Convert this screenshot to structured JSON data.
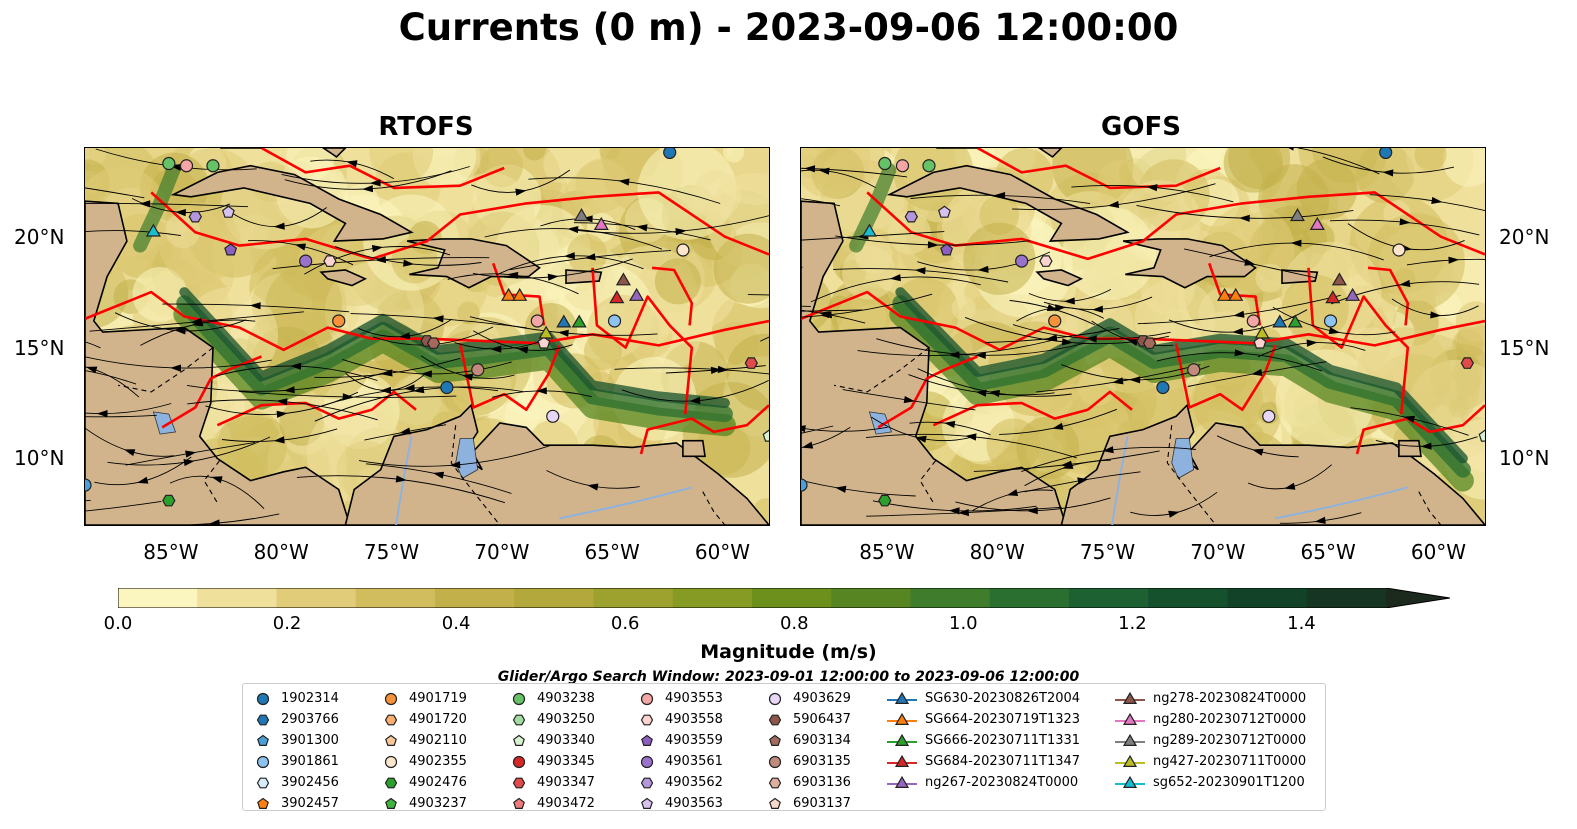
{
  "title": "Currents (0 m) - 2023-09-06 12:00:00",
  "panels": [
    {
      "title": "RTOFS"
    },
    {
      "title": "GOFS"
    }
  ],
  "axes": {
    "lon_ticks": [
      "85°W",
      "80°W",
      "75°W",
      "70°W",
      "65°W",
      "60°W"
    ],
    "lat_ticks": [
      "20°N",
      "15°N",
      "10°N"
    ]
  },
  "colorbar": {
    "label": "Magnitude (m/s)",
    "ticks": [
      "0.0",
      "0.2",
      "0.4",
      "0.6",
      "0.8",
      "1.0",
      "1.2",
      "1.4"
    ],
    "range": [
      0,
      1.5
    ],
    "colors": [
      "#fbf5bf",
      "#efe09c",
      "#e0cc79",
      "#d1bd5e",
      "#c2b14a",
      "#b2a83c",
      "#9da22f",
      "#869b23",
      "#6d8f1c",
      "#578522",
      "#3f7c2b",
      "#2b6f30",
      "#1d6132",
      "#16512d",
      "#124328",
      "#173523",
      "#1c2a1e"
    ]
  },
  "search_window": "Glider/Argo Search Window: 2023-09-01 12:00:00 to 2023-09-06 12:00:00",
  "legend": {
    "columns": [
      [
        {
          "label": "1902314",
          "marker": "circle",
          "color": "#1f77b4"
        },
        {
          "label": "2903766",
          "marker": "hexagon",
          "color": "#1f77b4"
        },
        {
          "label": "3901300",
          "marker": "pentagon",
          "color": "#4a9fd8"
        },
        {
          "label": "3901861",
          "marker": "circle",
          "color": "#8cc4ef"
        },
        {
          "label": "3902456",
          "marker": "hexagon",
          "color": "#d6ecf8"
        },
        {
          "label": "3902457",
          "marker": "pentagon",
          "color": "#ff7f0e"
        }
      ],
      [
        {
          "label": "4901719",
          "marker": "circle",
          "color": "#f7913a"
        },
        {
          "label": "4901720",
          "marker": "hexagon",
          "color": "#f9ad6f"
        },
        {
          "label": "4902110",
          "marker": "pentagon",
          "color": "#fbc79a"
        },
        {
          "label": "4902355",
          "marker": "circle",
          "color": "#fde6cc"
        },
        {
          "label": "4902476",
          "marker": "hexagon",
          "color": "#2ca02c"
        },
        {
          "label": "4903237",
          "marker": "pentagon",
          "color": "#3eb43e"
        }
      ],
      [
        {
          "label": "4903238",
          "marker": "circle",
          "color": "#66c266"
        },
        {
          "label": "4903250",
          "marker": "hexagon",
          "color": "#a3dba3"
        },
        {
          "label": "4903340",
          "marker": "pentagon",
          "color": "#d7f2d0"
        },
        {
          "label": "4903345",
          "marker": "circle",
          "color": "#d62728"
        },
        {
          "label": "4903347",
          "marker": "hexagon",
          "color": "#e04a4a"
        },
        {
          "label": "4903472",
          "marker": "pentagon",
          "color": "#ec7c7c"
        }
      ],
      [
        {
          "label": "4903553",
          "marker": "circle",
          "color": "#f4a5a5"
        },
        {
          "label": "4903558",
          "marker": "hexagon",
          "color": "#fbd3d0"
        },
        {
          "label": "4903559",
          "marker": "pentagon",
          "color": "#8c5fc1"
        },
        {
          "label": "4903561",
          "marker": "circle",
          "color": "#9a72cc"
        },
        {
          "label": "4903562",
          "marker": "hexagon",
          "color": "#b396dc"
        },
        {
          "label": "4903563",
          "marker": "pentagon",
          "color": "#d7c2ef"
        }
      ],
      [
        {
          "label": "4903629",
          "marker": "circle",
          "color": "#e8d6f7"
        },
        {
          "label": "5906437",
          "marker": "hexagon",
          "color": "#8c564b"
        },
        {
          "label": "6903134",
          "marker": "pentagon",
          "color": "#a46a5c"
        },
        {
          "label": "6903135",
          "marker": "circle",
          "color": "#c08a7c"
        },
        {
          "label": "6903136",
          "marker": "hexagon",
          "color": "#deae9e"
        },
        {
          "label": "6903137",
          "marker": "pentagon",
          "color": "#f7d8cc"
        }
      ],
      [
        {
          "label": "SG630-20230826T2004",
          "marker": "triangle",
          "color": "#1f77b4"
        },
        {
          "label": "SG664-20230719T1323",
          "marker": "triangle",
          "color": "#ff7f0e"
        },
        {
          "label": "SG666-20230711T1331",
          "marker": "triangle",
          "color": "#2ca02c"
        },
        {
          "label": "SG684-20230711T1347",
          "marker": "triangle",
          "color": "#d62728"
        },
        {
          "label": "ng267-20230824T0000",
          "marker": "triangle",
          "color": "#9467bd"
        }
      ],
      [
        {
          "label": "ng278-20230824T0000",
          "marker": "triangle",
          "color": "#8c564b"
        },
        {
          "label": "ng280-20230712T0000",
          "marker": "triangle",
          "color": "#e377c2"
        },
        {
          "label": "ng289-20230712T0000",
          "marker": "triangle",
          "color": "#7f7f7f"
        },
        {
          "label": "ng427-20230711T0000",
          "marker": "triangle",
          "color": "#bcbd22"
        },
        {
          "label": "sg652-20230901T1200",
          "marker": "triangle",
          "color": "#17becf"
        }
      ]
    ]
  },
  "map_extent": {
    "lon": [
      -89,
      -58
    ],
    "lat": [
      7,
      24
    ]
  },
  "platforms": [
    {
      "lon": -85.2,
      "lat": 23.3,
      "marker": "circle",
      "color": "#66c266"
    },
    {
      "lon": -84.4,
      "lat": 23.2,
      "marker": "circle",
      "color": "#f4a5a5"
    },
    {
      "lon": -83.2,
      "lat": 23.2,
      "marker": "circle",
      "color": "#66c266"
    },
    {
      "lon": -84.0,
      "lat": 20.9,
      "marker": "hexagon",
      "color": "#b396dc"
    },
    {
      "lon": -82.5,
      "lat": 21.1,
      "marker": "pentagon",
      "color": "#d7c2ef"
    },
    {
      "lon": -82.4,
      "lat": 19.4,
      "marker": "pentagon",
      "color": "#8c5fc1"
    },
    {
      "lon": -79.0,
      "lat": 18.9,
      "marker": "circle",
      "color": "#9a72cc"
    },
    {
      "lon": -77.9,
      "lat": 18.9,
      "marker": "hexagon",
      "color": "#fbd3d0"
    },
    {
      "lon": -77.5,
      "lat": 16.2,
      "marker": "circle",
      "color": "#f7913a"
    },
    {
      "lon": -73.5,
      "lat": 15.3,
      "marker": "hexagon",
      "color": "#8c564b"
    },
    {
      "lon": -73.2,
      "lat": 15.2,
      "marker": "hexagon",
      "color": "#a46a5c"
    },
    {
      "lon": -72.6,
      "lat": 13.2,
      "marker": "circle",
      "color": "#1f77b4"
    },
    {
      "lon": -71.2,
      "lat": 14.0,
      "marker": "circle",
      "color": "#c08a7c"
    },
    {
      "lon": -68.5,
      "lat": 16.2,
      "marker": "circle",
      "color": "#f4a5a5"
    },
    {
      "lon": -68.2,
      "lat": 15.2,
      "marker": "pentagon",
      "color": "#fbd3d0"
    },
    {
      "lon": -67.8,
      "lat": 11.9,
      "marker": "circle",
      "color": "#e8d6f7"
    },
    {
      "lon": -65.0,
      "lat": 16.2,
      "marker": "circle",
      "color": "#8cc4ef"
    },
    {
      "lon": -61.9,
      "lat": 19.4,
      "marker": "circle",
      "color": "#fde6cc"
    },
    {
      "lon": -58.8,
      "lat": 14.3,
      "marker": "hexagon",
      "color": "#e04a4a"
    },
    {
      "lon": -58.0,
      "lat": 11.0,
      "marker": "pentagon",
      "color": "#d7f2d0"
    },
    {
      "lon": -85.2,
      "lat": 8.1,
      "marker": "hexagon",
      "color": "#2ca02c"
    },
    {
      "lon": -89.0,
      "lat": 8.8,
      "marker": "circle",
      "color": "#4a9fd8"
    },
    {
      "lon": -62.5,
      "lat": 23.8,
      "marker": "circle",
      "color": "#1f77b4"
    },
    {
      "lon": -85.9,
      "lat": 20.2,
      "marker": "triangle",
      "color": "#17becf"
    },
    {
      "lon": -69.8,
      "lat": 17.3,
      "marker": "triangle",
      "color": "#ff7f0e"
    },
    {
      "lon": -69.3,
      "lat": 17.3,
      "marker": "triangle",
      "color": "#ff7f0e"
    },
    {
      "lon": -68.1,
      "lat": 15.6,
      "marker": "triangle",
      "color": "#bcbd22"
    },
    {
      "lon": -67.3,
      "lat": 16.1,
      "marker": "triangle",
      "color": "#1f77b4"
    },
    {
      "lon": -66.6,
      "lat": 16.1,
      "marker": "triangle",
      "color": "#2ca02c"
    },
    {
      "lon": -66.5,
      "lat": 20.9,
      "marker": "triangle",
      "color": "#7f7f7f"
    },
    {
      "lon": -65.6,
      "lat": 20.5,
      "marker": "triangle",
      "color": "#e377c2"
    },
    {
      "lon": -64.9,
      "lat": 17.2,
      "marker": "triangle",
      "color": "#d62728"
    },
    {
      "lon": -64.0,
      "lat": 17.3,
      "marker": "triangle",
      "color": "#9467bd"
    },
    {
      "lon": -64.6,
      "lat": 18.0,
      "marker": "triangle",
      "color": "#8c564b"
    }
  ]
}
